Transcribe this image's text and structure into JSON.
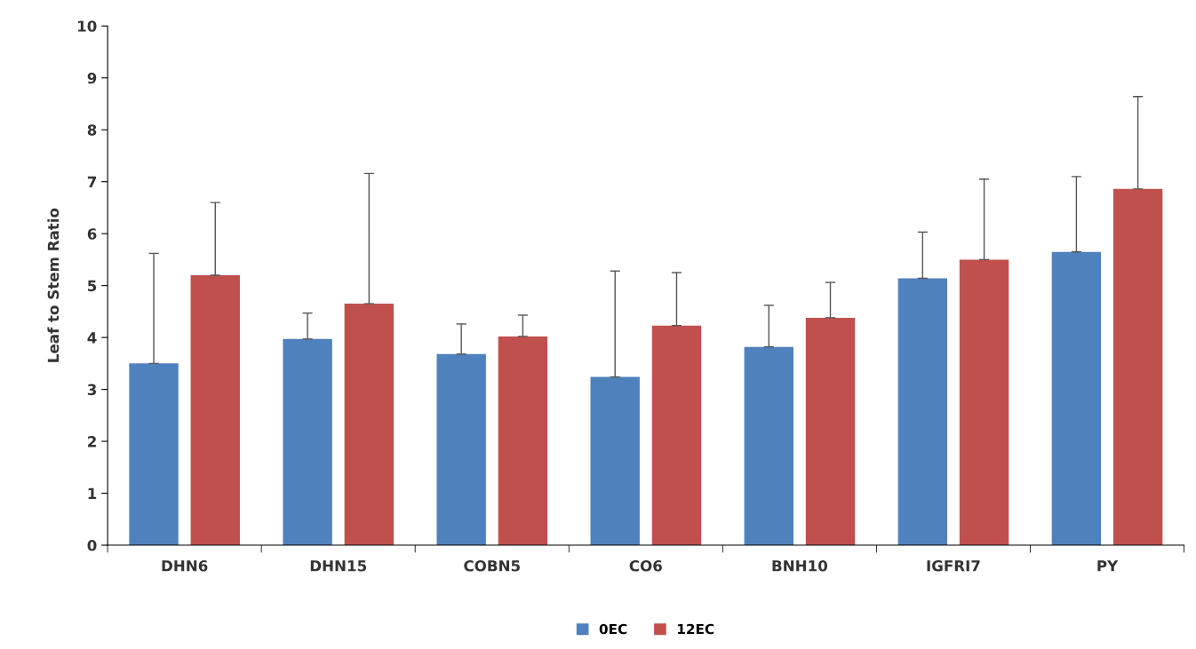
{
  "chart_data": {
    "type": "bar",
    "ylabel": "Leaf to Stem Ratio",
    "categories": [
      "DHN6",
      "DHN15",
      "COBN5",
      "CO6",
      "BNH10",
      "IGFRI7",
      "PY"
    ],
    "series": [
      {
        "name": "0EC",
        "color": "#4f81bd",
        "values": [
          3.5,
          3.97,
          3.68,
          3.24,
          3.82,
          5.14,
          5.65
        ],
        "errors": [
          [
            3.5,
            5.62
          ],
          [
            3.97,
            4.47
          ],
          [
            3.68,
            4.26
          ],
          [
            3.24,
            5.28
          ],
          [
            3.82,
            4.62
          ],
          [
            5.14,
            6.03
          ],
          [
            5.65,
            7.1
          ]
        ]
      },
      {
        "name": "12EC",
        "color": "#c0504d",
        "values": [
          5.2,
          4.65,
          4.02,
          4.23,
          4.38,
          5.5,
          6.86
        ],
        "errors": [
          [
            5.2,
            6.6
          ],
          [
            4.65,
            7.16
          ],
          [
            4.02,
            4.43
          ],
          [
            4.23,
            5.25
          ],
          [
            4.38,
            5.06
          ],
          [
            5.5,
            7.05
          ],
          [
            6.86,
            8.64
          ]
        ]
      }
    ],
    "ylim": [
      0,
      10
    ],
    "yticks": [
      0,
      1,
      2,
      3,
      4,
      5,
      6,
      7,
      8,
      9,
      10
    ],
    "grid": false,
    "legend": "bottom"
  }
}
